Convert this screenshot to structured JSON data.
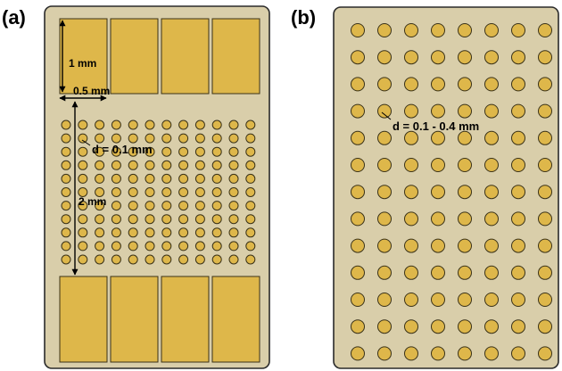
{
  "panels": {
    "a": {
      "label": "(a)",
      "height_label": "1 mm",
      "width_label": "0.5 mm",
      "spacing_label": "2 mm",
      "diameter_label": "d = 0.1 mm"
    },
    "b": {
      "label": "(b)",
      "diameter_label": "d = 0.1 - 0.4 mm"
    }
  },
  "colors": {
    "board": "#d9ceaa",
    "board_stroke": "#2a2a2a",
    "gold": "#deb74a",
    "gold_stroke": "#3a3218",
    "arrow": "#000000"
  }
}
